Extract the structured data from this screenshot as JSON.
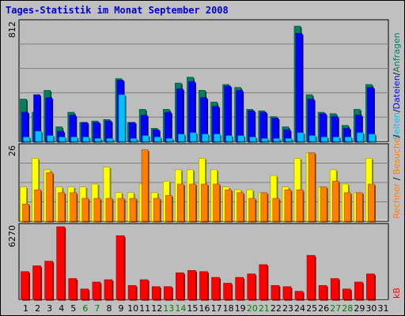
{
  "title": "Tages-Statistik im Monat September 2008",
  "legend": {
    "anfragen": "Anfragen",
    "dateien": "Dateien",
    "seiten": "Seiten",
    "besuche": "Besuche",
    "rechner": "Rechner",
    "kb": "kB",
    "separator": "/"
  },
  "colors": {
    "background": "#c0c0c0",
    "plot_bg": "#bdbdbd",
    "anfragen": "#00805f",
    "dateien": "#0000ff",
    "seiten": "#00c0ff",
    "besuche": "#ffff00",
    "rechner": "#ff8000",
    "kb": "#ff0000",
    "title": "#0000cc",
    "weekend_label": "#008000"
  },
  "chart_data": [
    {
      "type": "bar",
      "panel": "requests",
      "ymax_label": "812",
      "ylim": [
        0,
        812
      ],
      "grid": true,
      "x": [
        "1",
        "2",
        "3",
        "4",
        "5",
        "6",
        "7",
        "8",
        "9",
        "10",
        "11",
        "12",
        "13",
        "14",
        "15",
        "16",
        "17",
        "18",
        "19",
        "20",
        "21",
        "22",
        "23",
        "24",
        "25",
        "26",
        "27",
        "28",
        "29",
        "30",
        "31"
      ],
      "weekend_days": [
        "6",
        "7",
        "13",
        "14",
        "20",
        "21",
        "27",
        "28"
      ],
      "series": [
        {
          "name": "Anfragen",
          "values": [
            290,
            200,
            350,
            100,
            200,
            130,
            140,
            150,
            430,
            130,
            220,
            90,
            220,
            400,
            440,
            350,
            270,
            390,
            370,
            220,
            210,
            170,
            100,
            790,
            320,
            200,
            190,
            110,
            220,
            390,
            0
          ]
        },
        {
          "name": "Dateien",
          "values": [
            200,
            320,
            300,
            70,
            180,
            130,
            130,
            140,
            420,
            130,
            180,
            80,
            200,
            360,
            410,
            300,
            240,
            380,
            350,
            210,
            200,
            160,
            80,
            740,
            290,
            190,
            170,
            90,
            180,
            370,
            0
          ]
        },
        {
          "name": "Seiten",
          "values": [
            30,
            70,
            40,
            30,
            30,
            30,
            20,
            20,
            320,
            20,
            40,
            30,
            20,
            50,
            60,
            50,
            50,
            40,
            40,
            30,
            20,
            20,
            20,
            60,
            40,
            30,
            30,
            30,
            60,
            50,
            0
          ]
        }
      ]
    },
    {
      "type": "bar",
      "panel": "visits",
      "ymax_label": "26",
      "ylim": [
        0,
        26
      ],
      "grid": true,
      "x": [
        "1",
        "2",
        "3",
        "4",
        "5",
        "6",
        "7",
        "8",
        "9",
        "10",
        "11",
        "12",
        "13",
        "14",
        "15",
        "16",
        "17",
        "18",
        "19",
        "20",
        "21",
        "22",
        "23",
        "24",
        "25",
        "26",
        "27",
        "28",
        "29",
        "30",
        "31"
      ],
      "series": [
        {
          "name": "Besuche",
          "values": [
            12,
            22,
            18,
            12,
            12,
            12,
            13,
            19,
            10,
            10,
            13,
            10,
            14,
            18,
            18,
            22,
            18,
            12,
            11,
            11,
            10,
            16,
            12,
            22,
            24,
            12,
            18,
            13,
            10,
            22,
            0
          ]
        },
        {
          "name": "Rechner",
          "values": [
            6,
            11,
            17,
            10,
            10,
            8,
            8,
            8,
            8,
            8,
            25,
            8,
            9,
            13,
            13,
            13,
            13,
            11,
            10,
            8,
            10,
            8,
            11,
            11,
            24,
            12,
            14,
            10,
            10,
            13,
            0
          ]
        }
      ]
    },
    {
      "type": "bar",
      "panel": "volume",
      "ymax_label": "6270",
      "ylim": [
        0,
        6270
      ],
      "grid": false,
      "x": [
        "1",
        "2",
        "3",
        "4",
        "5",
        "6",
        "7",
        "8",
        "9",
        "10",
        "11",
        "12",
        "13",
        "14",
        "15",
        "16",
        "17",
        "18",
        "19",
        "20",
        "21",
        "22",
        "23",
        "24",
        "25",
        "26",
        "27",
        "28",
        "29",
        "30",
        "31"
      ],
      "series": [
        {
          "name": "kB",
          "values": [
            2400,
            2900,
            3300,
            6270,
            1800,
            900,
            1500,
            1700,
            5500,
            1200,
            1700,
            1100,
            1100,
            2300,
            2500,
            2400,
            1900,
            1400,
            1900,
            2200,
            3000,
            1200,
            1100,
            700,
            3800,
            1200,
            1800,
            900,
            1500,
            2200,
            0
          ]
        }
      ]
    }
  ]
}
